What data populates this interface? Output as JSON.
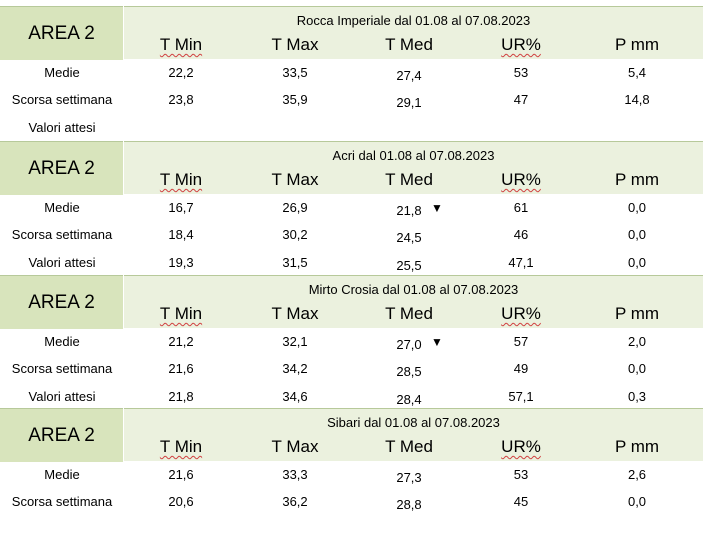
{
  "headers": [
    "T Min",
    "T Max",
    "T Med",
    "UR%",
    "P mm"
  ],
  "blocks": [
    {
      "area": "AREA 2",
      "title": "Rocca Imperiale  dal 01.08 al 07.08.2023",
      "rows": [
        {
          "label": "Medie",
          "values": [
            "22,2",
            "33,5",
            "27,4",
            "53",
            "5,4"
          ]
        },
        {
          "label": "Scorsa settimana",
          "values": [
            "23,8",
            "35,9",
            "29,1",
            "47",
            "14,8"
          ]
        },
        {
          "label": "Valori attesi",
          "values": [
            "",
            "",
            "",
            "",
            ""
          ]
        }
      ]
    },
    {
      "area": "AREA 2",
      "title": "Acri dal 01.08 al 07.08.2023",
      "rows": [
        {
          "label": "Medie",
          "values": [
            "16,7",
            "26,9",
            "21,8",
            "61",
            "0,0"
          ],
          "arrow": "▼"
        },
        {
          "label": "Scorsa settimana",
          "values": [
            "18,4",
            "30,2",
            "24,5",
            "46",
            "0,0"
          ]
        },
        {
          "label": "Valori attesi",
          "values": [
            "19,3",
            "31,5",
            "25,5",
            "47,1",
            "0,0"
          ]
        }
      ]
    },
    {
      "area": "AREA 2",
      "title": "Mirto Crosia dal 01.08 al 07.08.2023",
      "rows": [
        {
          "label": "Medie",
          "values": [
            "21,2",
            "32,1",
            "27,0",
            "57",
            "2,0"
          ],
          "arrow": "▼"
        },
        {
          "label": "Scorsa settimana",
          "values": [
            "21,6",
            "34,2",
            "28,5",
            "49",
            "0,0"
          ]
        },
        {
          "label": "Valori attesi",
          "values": [
            "21,8",
            "34,6",
            "28,4",
            "57,1",
            "0,3"
          ]
        }
      ]
    },
    {
      "area": "AREA 2",
      "title": "Sibari dal 01.08 al 07.08.2023",
      "rows": [
        {
          "label": "Medie",
          "values": [
            "21,6",
            "33,3",
            "27,3",
            "53",
            "2,6"
          ]
        },
        {
          "label": "Scorsa settimana",
          "values": [
            "20,6",
            "36,2",
            "28,8",
            "45",
            "0,0"
          ]
        }
      ]
    }
  ]
}
